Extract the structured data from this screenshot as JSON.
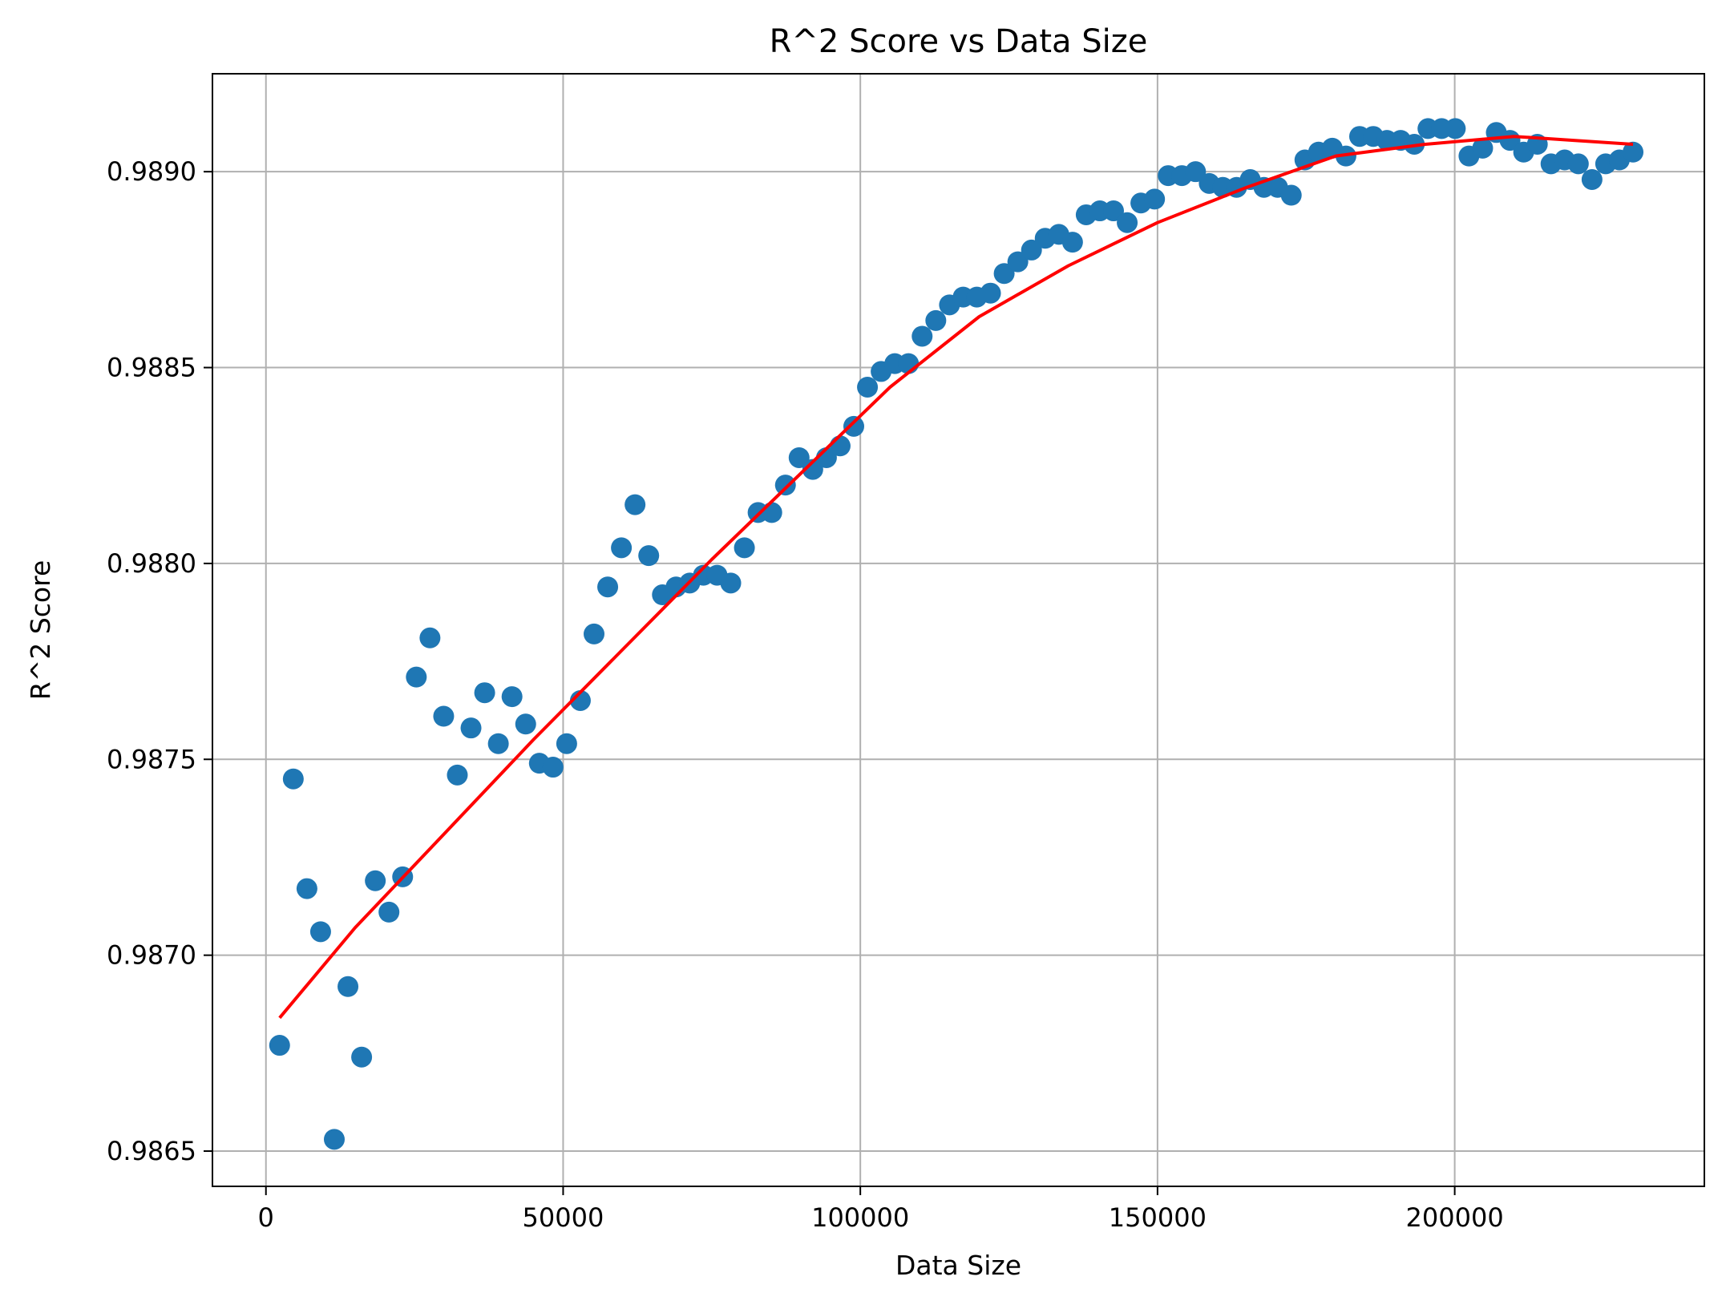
{
  "chart_data": {
    "type": "scatter",
    "title": "R^2 Score vs Data Size",
    "xlabel": "Data Size",
    "ylabel": "R^2 Score",
    "xlim": [
      -9000,
      242000
    ],
    "ylim": [
      0.98641,
      0.98925
    ],
    "xticks": [
      0,
      50000,
      100000,
      150000,
      200000
    ],
    "xtick_labels": [
      "0",
      "50000",
      "100000",
      "150000",
      "200000"
    ],
    "yticks": [
      0.9865,
      0.987,
      0.9875,
      0.988,
      0.9885,
      0.989
    ],
    "ytick_labels": [
      "0.9865",
      "0.9870",
      "0.9875",
      "0.9880",
      "0.9885",
      "0.9890"
    ],
    "grid": true,
    "colors": {
      "points": "#1f77b4",
      "fit": "#ff0000",
      "grid": "#b0b0b0"
    },
    "series": [
      {
        "kind": "scatter",
        "x": [
          2300,
          4600,
          6900,
          9200,
          11500,
          13800,
          16100,
          18400,
          20700,
          23000,
          25300,
          27600,
          29900,
          32200,
          34500,
          36800,
          39100,
          41400,
          43700,
          46000,
          48300,
          50600,
          52900,
          55200,
          57500,
          59800,
          62100,
          64400,
          66700,
          69000,
          71300,
          73600,
          75900,
          78200,
          80500,
          82800,
          85100,
          87400,
          89700,
          92000,
          94300,
          96600,
          98900,
          101200,
          103500,
          105800,
          108100,
          110400,
          112700,
          115000,
          117300,
          119600,
          121900,
          124200,
          126500,
          128800,
          131100,
          133400,
          135700,
          138000,
          140300,
          142600,
          144900,
          147200,
          149500,
          151800,
          154100,
          156400,
          158700,
          161000,
          163300,
          165600,
          167900,
          170200,
          172500,
          174800,
          177100,
          179400,
          181700,
          184000,
          186300,
          188600,
          190900,
          193200,
          195500,
          197800,
          200100,
          202400,
          204700,
          207000,
          209300,
          211600,
          213900,
          216200,
          218500,
          220800,
          223100,
          225400,
          227700,
          230000
        ],
        "y": [
          0.98677,
          0.98745,
          0.98717,
          0.98706,
          0.98653,
          0.98692,
          0.98674,
          0.98719,
          0.98711,
          0.9872,
          0.98771,
          0.98781,
          0.98761,
          0.98746,
          0.98758,
          0.98767,
          0.98754,
          0.98766,
          0.98759,
          0.98749,
          0.98748,
          0.98754,
          0.98765,
          0.98782,
          0.98794,
          0.98804,
          0.98815,
          0.98802,
          0.98792,
          0.98794,
          0.98795,
          0.98797,
          0.98797,
          0.98795,
          0.98804,
          0.98813,
          0.98813,
          0.9882,
          0.98827,
          0.98824,
          0.98827,
          0.9883,
          0.98835,
          0.98845,
          0.98849,
          0.98851,
          0.98851,
          0.98858,
          0.98862,
          0.98866,
          0.98868,
          0.98868,
          0.98869,
          0.98874,
          0.98877,
          0.9888,
          0.98883,
          0.98884,
          0.98882,
          0.98889,
          0.9889,
          0.9889,
          0.98887,
          0.98892,
          0.98893,
          0.98899,
          0.98899,
          0.989,
          0.98897,
          0.98896,
          0.98896,
          0.98898,
          0.98896,
          0.98896,
          0.98894,
          0.98903,
          0.98905,
          0.98906,
          0.98904,
          0.98909,
          0.98909,
          0.98908,
          0.98908,
          0.98907,
          0.98911,
          0.98911,
          0.98911,
          0.98904,
          0.98906,
          0.9891,
          0.98908,
          0.98905,
          0.98907,
          0.98902,
          0.98903,
          0.98902,
          0.98898,
          0.98902,
          0.98903,
          0.98905
        ]
      },
      {
        "kind": "line",
        "x": [
          2300,
          15000,
          30000,
          45000,
          60000,
          75000,
          90000,
          105000,
          120000,
          135000,
          150000,
          165000,
          180000,
          195000,
          210000,
          220000,
          230000
        ],
        "y": [
          0.98684,
          0.98707,
          0.98731,
          0.98755,
          0.98778,
          0.98801,
          0.98823,
          0.98845,
          0.98863,
          0.98876,
          0.98887,
          0.98896,
          0.98904,
          0.98907,
          0.98909,
          0.98908,
          0.98907
        ]
      }
    ]
  }
}
